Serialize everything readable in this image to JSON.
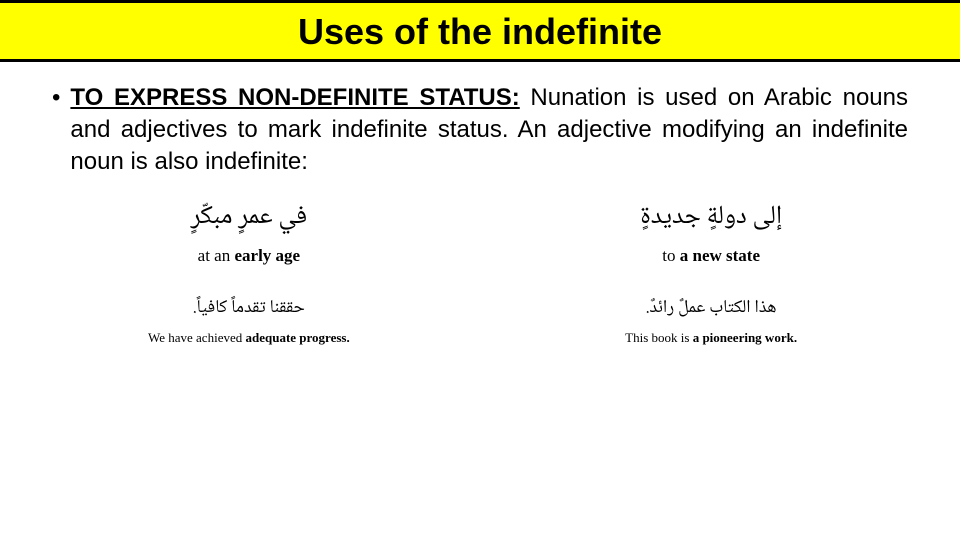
{
  "title": "Uses of the indefinite",
  "bullet_char": "•",
  "lead": "TO EXPRESS NON-DEFINITE STATUS:",
  "body": " Nunation is used on Arabic nouns and adjectives to mark indefinite status. An adjective modifying an indefinite noun is also indefinite:",
  "row1": {
    "left": {
      "ar": "في عمرٍ مبكّرٍ",
      "en_pre": "at an ",
      "en_b": "early age",
      "en_post": ""
    },
    "right": {
      "ar": "إلى دولةٍ جديدةٍ",
      "en_pre": "to ",
      "en_b": "a new state",
      "en_post": ""
    }
  },
  "row2": {
    "left": {
      "ar": "حققنا تقدماً كافياً.",
      "en_pre": "We have achieved ",
      "en_b": "adequate progress.",
      "en_post": ""
    },
    "right": {
      "ar": "هذا الكتاب عملٌ رائدٌ.",
      "en_pre": "This book is ",
      "en_b": "a pioneering work.",
      "en_post": ""
    }
  },
  "colors": {
    "title_bg": "#ffff00",
    "title_border": "#000000",
    "text": "#000000",
    "page_bg": "#ffffff"
  }
}
